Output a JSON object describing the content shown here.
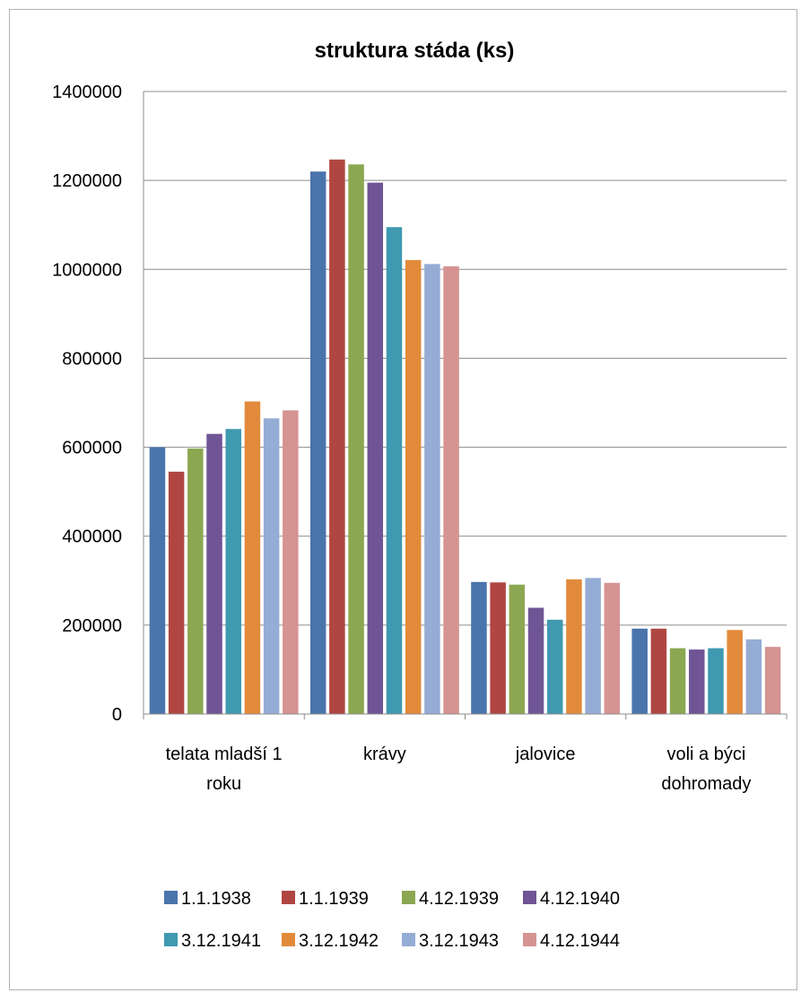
{
  "chart_data": {
    "type": "bar",
    "title": "struktura stáda (ks)",
    "xlabel": "",
    "ylabel": "",
    "ylim": [
      0,
      1400000
    ],
    "yticks": [
      0,
      200000,
      400000,
      600000,
      800000,
      1000000,
      1200000,
      1400000
    ],
    "grid": true,
    "legend_position": "bottom",
    "categories": [
      [
        "telata mladší 1",
        "roku"
      ],
      [
        "krávy"
      ],
      [
        "jalovice"
      ],
      [
        "voli a býci",
        "dohromady"
      ]
    ],
    "series": [
      {
        "name": "1.1.1938",
        "color": "#4a74ac",
        "values": [
          600000,
          1220000,
          297000,
          192000
        ]
      },
      {
        "name": "1.1.1939",
        "color": "#b04642",
        "values": [
          545000,
          1247000,
          296000,
          192000
        ]
      },
      {
        "name": "4.12.1939",
        "color": "#8ca751",
        "values": [
          597000,
          1236000,
          291000,
          148000
        ]
      },
      {
        "name": "4.12.1940",
        "color": "#6f5595",
        "values": [
          630000,
          1195000,
          239000,
          145000
        ]
      },
      {
        "name": "3.12.1941",
        "color": "#3f99b0",
        "values": [
          641000,
          1095000,
          212000,
          148000
        ]
      },
      {
        "name": "3.12.1942",
        "color": "#e28a3b",
        "values": [
          703000,
          1021000,
          303000,
          189000
        ]
      },
      {
        "name": "3.12.1943",
        "color": "#95acd5",
        "values": [
          665000,
          1012000,
          306000,
          168000
        ]
      },
      {
        "name": "4.12.1944",
        "color": "#d59392",
        "values": [
          683000,
          1007000,
          295000,
          151000
        ]
      }
    ]
  }
}
